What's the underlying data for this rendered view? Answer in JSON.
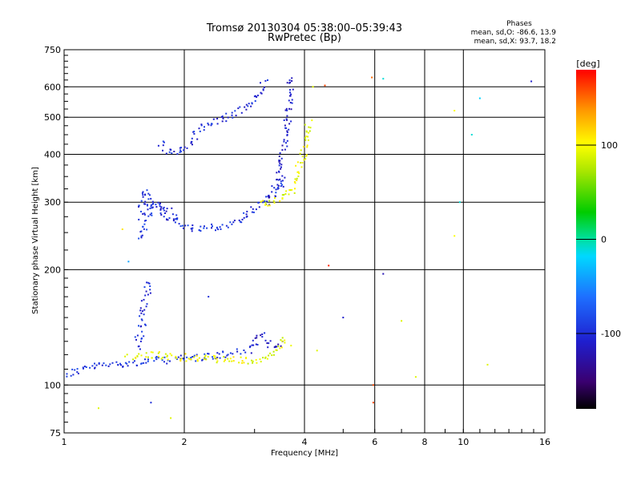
{
  "chart_data": {
    "type": "scatter",
    "title": "Tromsø 20130304 05:38:00–05:39:43",
    "subtitle": "RwPretec (Bp)",
    "xlabel": "Frequency [MHz]",
    "ylabel": "Stationary phase Virtual Height [km]",
    "x_scale": "log",
    "y_scale": "log",
    "xlim": [
      1,
      16
    ],
    "ylim": [
      75,
      750
    ],
    "x_ticks": [
      1,
      2,
      4,
      6,
      8,
      10,
      16
    ],
    "y_ticks": [
      75,
      100,
      200,
      300,
      400,
      500,
      600,
      750
    ],
    "grid": true,
    "phase_stats": {
      "heading": "Phases",
      "o_line": "mean, sd,O: -86.6, 13.9",
      "x_line": "mean, sd,X:  93.7, 18.2"
    },
    "colorbar": {
      "label": "[deg]",
      "ticks": [
        "100",
        "0",
        "-100"
      ],
      "range": [
        -180,
        180
      ],
      "tick_values": [
        100,
        0,
        -100
      ]
    },
    "traces": [
      {
        "name": "",
        "phase": -95,
        "points": [
          [
            1.01,
            106
          ],
          [
            1.05,
            108
          ],
          [
            1.1,
            110
          ],
          [
            1.15,
            111
          ],
          [
            1.2,
            112
          ],
          [
            1.3,
            113
          ],
          [
            1.4,
            114
          ],
          [
            1.5,
            114
          ],
          [
            1.6,
            115
          ],
          [
            1.7,
            116
          ],
          [
            1.8,
            116
          ],
          [
            1.9,
            117
          ],
          [
            2.0,
            117
          ],
          [
            2.2,
            118
          ],
          [
            2.4,
            119
          ],
          [
            2.6,
            121
          ],
          [
            2.8,
            123
          ]
        ]
      },
      {
        "name": "",
        "phase": -100,
        "points": [
          [
            1.52,
            125
          ],
          [
            1.55,
            135
          ],
          [
            1.57,
            145
          ],
          [
            1.58,
            155
          ],
          [
            1.6,
            165
          ],
          [
            1.62,
            178
          ],
          [
            1.63,
            188
          ]
        ]
      },
      {
        "name": "",
        "phase": -110,
        "points": [
          [
            2.9,
            122
          ],
          [
            3.0,
            130
          ],
          [
            3.1,
            136
          ],
          [
            3.2,
            132
          ],
          [
            3.3,
            128
          ],
          [
            3.4,
            125
          ],
          [
            3.5,
            128
          ]
        ]
      },
      {
        "name": "",
        "phase": 95,
        "points": [
          [
            1.45,
            118
          ],
          [
            1.6,
            120
          ],
          [
            1.8,
            119
          ],
          [
            2.0,
            118
          ],
          [
            3.1,
            115
          ],
          [
            3.6,
            130
          ],
          [
            3.7,
            128
          ]
        ]
      },
      {
        "name": "",
        "phase": -95,
        "points": [
          [
            1.55,
            240
          ],
          [
            1.6,
            258
          ],
          [
            1.62,
            275
          ],
          [
            1.65,
            295
          ],
          [
            1.7,
            300
          ],
          [
            1.8,
            290
          ],
          [
            1.9,
            270
          ],
          [
            2.0,
            258
          ],
          [
            2.2,
            255
          ],
          [
            2.4,
            258
          ],
          [
            2.6,
            262
          ],
          [
            2.8,
            272
          ],
          [
            3.0,
            290
          ],
          [
            3.2,
            305
          ],
          [
            3.4,
            320
          ],
          [
            3.6,
            355
          ]
        ]
      },
      {
        "name": "",
        "phase": -100,
        "points": [
          [
            1.55,
            275
          ],
          [
            1.6,
            320
          ],
          [
            1.62,
            300
          ],
          [
            1.7,
            290
          ],
          [
            1.8,
            280
          ],
          [
            1.9,
            265
          ]
        ]
      },
      {
        "name": "",
        "phase": -110,
        "points": [
          [
            3.2,
            295
          ],
          [
            3.4,
            330
          ],
          [
            3.5,
            380
          ],
          [
            3.6,
            460
          ],
          [
            3.65,
            520
          ],
          [
            3.7,
            590
          ],
          [
            3.7,
            640
          ]
        ]
      },
      {
        "name": "",
        "phase": -100,
        "points": [
          [
            1.75,
            430
          ],
          [
            1.8,
            410
          ],
          [
            1.9,
            400
          ],
          [
            2.0,
            410
          ],
          [
            2.2,
            470
          ],
          [
            2.4,
            490
          ],
          [
            2.6,
            505
          ],
          [
            2.8,
            520
          ],
          [
            3.0,
            560
          ],
          [
            3.2,
            620
          ]
        ]
      },
      {
        "name": "",
        "phase": 95,
        "points": [
          [
            3.1,
            295
          ],
          [
            3.3,
            300
          ],
          [
            3.5,
            305
          ],
          [
            3.7,
            320
          ],
          [
            3.8,
            345
          ],
          [
            3.9,
            375
          ],
          [
            4.0,
            410
          ],
          [
            4.05,
            450
          ],
          [
            4.1,
            490
          ]
        ]
      }
    ],
    "scattered_points": [
      {
        "x": 1.4,
        "y": 255,
        "phase": 110
      },
      {
        "x": 1.45,
        "y": 210,
        "phase": -40
      },
      {
        "x": 2.3,
        "y": 170,
        "phase": -100
      },
      {
        "x": 4.2,
        "y": 600,
        "phase": 90
      },
      {
        "x": 4.5,
        "y": 605,
        "phase": 160
      },
      {
        "x": 5.9,
        "y": 635,
        "phase": 150
      },
      {
        "x": 6.3,
        "y": 630,
        "phase": -10
      },
      {
        "x": 9.5,
        "y": 520,
        "phase": 100
      },
      {
        "x": 11.0,
        "y": 560,
        "phase": -20
      },
      {
        "x": 14.8,
        "y": 620,
        "phase": -110
      },
      {
        "x": 9.8,
        "y": 300,
        "phase": -10
      },
      {
        "x": 9.5,
        "y": 245,
        "phase": 100
      },
      {
        "x": 10.5,
        "y": 450,
        "phase": -10
      },
      {
        "x": 5.0,
        "y": 150,
        "phase": -110
      },
      {
        "x": 6.3,
        "y": 195,
        "phase": -120
      },
      {
        "x": 7.6,
        "y": 105,
        "phase": 90
      },
      {
        "x": 11.5,
        "y": 113,
        "phase": 90
      },
      {
        "x": 5.95,
        "y": 100,
        "phase": 160
      },
      {
        "x": 5.95,
        "y": 90,
        "phase": 160
      },
      {
        "x": 1.22,
        "y": 87,
        "phase": 90
      },
      {
        "x": 1.65,
        "y": 90,
        "phase": -100
      },
      {
        "x": 1.85,
        "y": 82,
        "phase": 90
      },
      {
        "x": 4.6,
        "y": 205,
        "phase": 170
      },
      {
        "x": 4.3,
        "y": 123,
        "phase": 90
      },
      {
        "x": 7.0,
        "y": 147,
        "phase": 90
      }
    ]
  }
}
